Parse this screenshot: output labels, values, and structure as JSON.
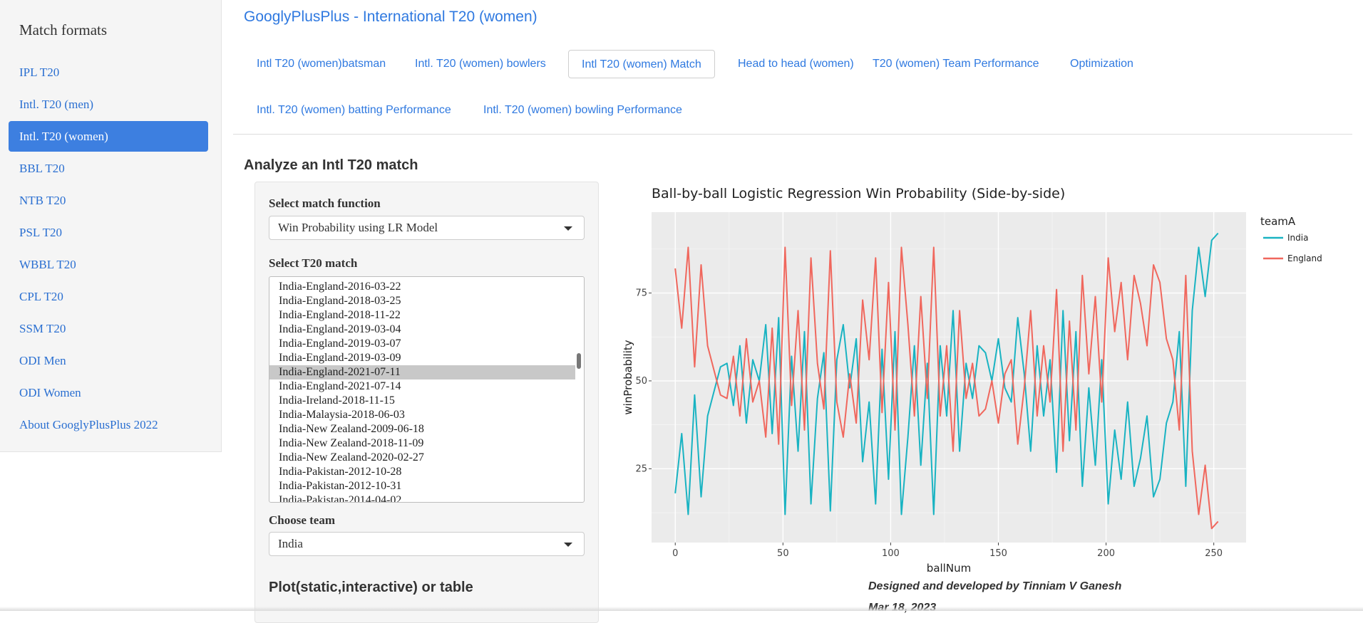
{
  "sidebar": {
    "title": "Match formats",
    "items": [
      {
        "label": "IPL T20"
      },
      {
        "label": "Intl. T20 (men)"
      },
      {
        "label": "Intl. T20 (women)"
      },
      {
        "label": "BBL T20"
      },
      {
        "label": "NTB T20"
      },
      {
        "label": "PSL T20"
      },
      {
        "label": "WBBL T20"
      },
      {
        "label": "CPL T20"
      },
      {
        "label": "SSM T20"
      },
      {
        "label": "ODI Men"
      },
      {
        "label": "ODI Women"
      },
      {
        "label": "About GooglyPlusPlus 2022"
      }
    ],
    "active_index": 2
  },
  "header": {
    "title": "GooglyPlusPlus - International T20 (women)",
    "tabs": [
      {
        "label": "Intl T20 (women)batsman"
      },
      {
        "label": "Intl. T20 (women) bowlers"
      },
      {
        "label": "Intl T20 (women) Match"
      },
      {
        "label": "Head to head (women)"
      },
      {
        "label": "T20 (women) Team Performance"
      },
      {
        "label": "Optimization"
      },
      {
        "label": "Intl. T20 (women) batting Performance"
      },
      {
        "label": "Intl. T20 (women) bowling Performance"
      }
    ],
    "active_tab": 2
  },
  "main": {
    "section_title": "Analyze an Intl T20 match",
    "match_function_label": "Select match function",
    "match_function_value": "Win Probability using LR Model",
    "match_select_label": "Select T20 match",
    "matches": [
      "India-England-2016-03-22",
      "India-England-2018-03-25",
      "India-England-2018-11-22",
      "India-England-2019-03-04",
      "India-England-2019-03-07",
      "India-England-2019-03-09",
      "India-England-2021-07-11",
      "India-England-2021-07-14",
      "India-Ireland-2018-11-15",
      "India-Malaysia-2018-06-03",
      "India-New Zealand-2009-06-18",
      "India-New Zealand-2018-11-09",
      "India-New Zealand-2020-02-27",
      "India-Pakistan-2012-10-28",
      "India-Pakistan-2012-10-31",
      "India-Pakistan-2014-04-02"
    ],
    "selected_match": "India-England-2021-07-11",
    "team_label": "Choose team",
    "team_value": "India",
    "plot_type_label": "Plot(static,interactive) or table",
    "credits": "Designed and developed by Tinniam V Ganesh",
    "date": "Mar 18, 2023"
  },
  "chart_data": {
    "type": "line",
    "title": "Ball-by-ball Logistic Regression Win Probability (Side-by-side)",
    "xlabel": "ballNum",
    "ylabel": "winProbability",
    "legend_title": "teamA",
    "legend_position": "right",
    "xlim": [
      -11,
      265
    ],
    "ylim": [
      4,
      98
    ],
    "xticks": [
      0,
      50,
      100,
      150,
      200,
      250
    ],
    "yticks": [
      25,
      50,
      75
    ],
    "grid": true,
    "colors": {
      "India": "#19b3c2",
      "England": "#f0675d",
      "panel": "#ebebeb",
      "grid": "#ffffff"
    },
    "series": [
      {
        "name": "India",
        "x": [
          0,
          3,
          6,
          9,
          12,
          15,
          18,
          21,
          24,
          27,
          30,
          33,
          36,
          39,
          42,
          45,
          48,
          51,
          54,
          57,
          60,
          63,
          66,
          69,
          72,
          75,
          78,
          81,
          84,
          87,
          90,
          93,
          96,
          99,
          102,
          105,
          108,
          111,
          114,
          117,
          120,
          123,
          126,
          129,
          132,
          135,
          138,
          141,
          144,
          147,
          150,
          153,
          156,
          159,
          162,
          165,
          168,
          171,
          174,
          177,
          180,
          183,
          186,
          189,
          192,
          195,
          198,
          201,
          204,
          207,
          210,
          213,
          216,
          219,
          222,
          225,
          228,
          231,
          234,
          237,
          240,
          243,
          246,
          249,
          252
        ],
        "values": [
          18,
          35,
          12,
          46,
          17,
          40,
          47,
          54,
          55,
          43,
          60,
          38,
          56,
          50,
          66,
          35,
          68,
          12,
          57,
          30,
          64,
          15,
          45,
          58,
          13,
          56,
          66,
          48,
          62,
          27,
          44,
          15,
          59,
          22,
          64,
          12,
          34,
          60,
          26,
          55,
          12,
          60,
          40,
          70,
          30,
          55,
          45,
          60,
          58,
          50,
          62,
          48,
          44,
          68,
          52,
          30,
          60,
          40,
          56,
          24,
          70,
          33,
          64,
          20,
          48,
          26,
          56,
          15,
          36,
          22,
          44,
          20,
          28,
          40,
          17,
          22,
          38,
          44,
          64,
          20,
          70,
          88,
          74,
          90,
          92
        ]
      },
      {
        "name": "England",
        "x": [
          0,
          3,
          6,
          9,
          12,
          15,
          18,
          21,
          24,
          27,
          30,
          33,
          36,
          39,
          42,
          45,
          48,
          51,
          54,
          57,
          60,
          63,
          66,
          69,
          72,
          75,
          78,
          81,
          84,
          87,
          90,
          93,
          96,
          99,
          102,
          105,
          108,
          111,
          114,
          117,
          120,
          123,
          126,
          129,
          132,
          135,
          138,
          141,
          144,
          147,
          150,
          153,
          156,
          159,
          162,
          165,
          168,
          171,
          174,
          177,
          180,
          183,
          186,
          189,
          192,
          195,
          198,
          201,
          204,
          207,
          210,
          213,
          216,
          219,
          222,
          225,
          228,
          231,
          234,
          237,
          240,
          243,
          246,
          249,
          252
        ],
        "values": [
          82,
          65,
          88,
          54,
          83,
          60,
          53,
          46,
          45,
          57,
          40,
          62,
          44,
          50,
          34,
          65,
          32,
          88,
          43,
          70,
          36,
          85,
          55,
          42,
          87,
          44,
          34,
          52,
          38,
          73,
          56,
          85,
          41,
          78,
          36,
          88,
          66,
          40,
          74,
          45,
          88,
          40,
          60,
          30,
          70,
          45,
          55,
          40,
          42,
          50,
          38,
          52,
          56,
          32,
          48,
          70,
          40,
          60,
          44,
          76,
          30,
          67,
          36,
          80,
          52,
          74,
          44,
          85,
          64,
          78,
          56,
          80,
          72,
          60,
          83,
          78,
          62,
          56,
          36,
          80,
          30,
          12,
          26,
          8,
          10
        ]
      }
    ]
  }
}
